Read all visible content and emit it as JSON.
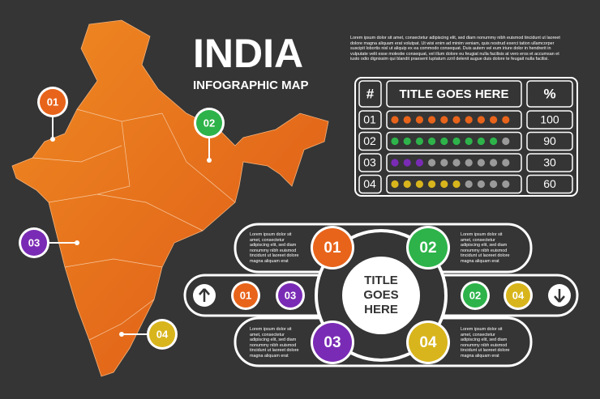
{
  "title": "INDIA",
  "subtitle": "INFOGRAPHIC MAP",
  "intro": "Lorem ipsum dolor sit amet, consectetur adipiscing elit, sed diam nonummy nibh euismod tincidunt ut laoreet dolore magna aliquam erat volutpat. Ut wisi enim ad minim veniam, quis nostrud exerci tation ullamcorper suscipit lobortis nisl ut aliquip ex ea commodo consequat. Duis autem vel eum iriure dolor in hendrerit in vulputate velit esse molestie consequat, vel illum dolore eu feugiat nulla facilisis at vero eros et accumsan et iusto odio dignissim qui blandit praesent luptatum zzril delenit augue duis dolore te feugait nulla facilisi.",
  "map": {
    "markers": [
      {
        "label": "01",
        "color": "#e8641b"
      },
      {
        "label": "02",
        "color": "#2db34a"
      },
      {
        "label": "03",
        "color": "#7a2bb5"
      },
      {
        "label": "04",
        "color": "#d8b51c"
      }
    ]
  },
  "table": {
    "header": [
      "#",
      "TITLE GOES HERE",
      "%"
    ],
    "rows": [
      {
        "number": "01",
        "percent": 100,
        "color": "#e8641b"
      },
      {
        "number": "02",
        "percent": 90,
        "color": "#2db34a"
      },
      {
        "number": "03",
        "percent": 30,
        "color": "#7a2bb5"
      },
      {
        "number": "04",
        "percent": 60,
        "color": "#d8b51c"
      }
    ]
  },
  "diagram": {
    "center": [
      "TITLE",
      "GOES",
      "HERE"
    ],
    "items": [
      {
        "number": "01",
        "color": "#e8641b",
        "text": "Lorem ipsum dolor sit amet, consectetur adipiscing elit, sed diam nonummy nibh euismod tincidunt ut laoreet dolore magna aliquam erat volutpat."
      },
      {
        "number": "02",
        "color": "#2db34a",
        "text": "Lorem ipsum dolor sit amet, consectetur adipiscing elit, sed diam nonummy nibh euismod tincidunt ut laoreet dolore magna aliquam erat volutpat."
      },
      {
        "number": "03",
        "color": "#7a2bb5",
        "text": "Lorem ipsum dolor sit amet, consectetur adipiscing elit, sed diam nonummy nibh euismod tincidunt ut laoreet dolore magna aliquam erat volutpat."
      },
      {
        "number": "04",
        "color": "#d8b51c",
        "text": "Lorem ipsum dolor sit amet, consectetur adipiscing elit, sed diam nonummy nibh euismod tincidunt ut laoreet dolore magna aliquam erat volutpat."
      }
    ],
    "left_tabs": [
      {
        "number": "01",
        "color": "#e8641b"
      },
      {
        "number": "03",
        "color": "#7a2bb5"
      }
    ],
    "right_tabs": [
      {
        "number": "02",
        "color": "#2db34a"
      },
      {
        "number": "04",
        "color": "#d8b51c"
      }
    ]
  }
}
